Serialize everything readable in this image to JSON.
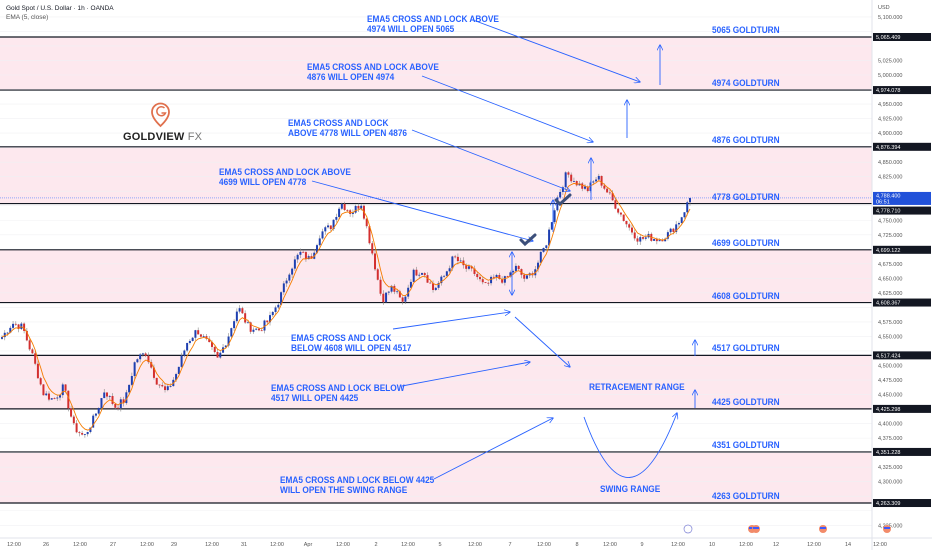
{
  "header": {
    "title": "Gold Spot / U.S. Dollar · 1h · OANDA",
    "indicator": "EMA (5, close)"
  },
  "logo": {
    "text": "GOLDVIEW",
    "suffix": "FX",
    "watermark": "GOLDVIEW FX"
  },
  "colors": {
    "up": "#1e3fb0",
    "down": "#d32f2f",
    "ema": "#f57c00",
    "annotation": "#2962ff",
    "band": "#fde8ee",
    "level_line": "#131722",
    "price_tag": "#2151d9"
  },
  "chart_data": {
    "type": "candlestick",
    "symbol": "XAUUSD",
    "interval": "1h",
    "currency": "USD",
    "ylim": [
      4210,
      5110
    ],
    "y_ticks": [
      5100,
      5075,
      5050,
      5025,
      5000,
      4975,
      4950,
      4925,
      4900,
      4875,
      4850,
      4825,
      4800,
      4775,
      4750,
      4725,
      4700,
      4675,
      4650,
      4625,
      4600,
      4575,
      4550,
      4525,
      4500,
      4475,
      4450,
      4425,
      4400,
      4375,
      4350,
      4325,
      4300,
      4275,
      4250,
      4225
    ],
    "x_ticks": [
      "12:00",
      "26",
      "12:00",
      "27",
      "12:00",
      "29",
      "12:00",
      "31",
      "12:00",
      "Apr",
      "12:00",
      "2",
      "12:00",
      "5",
      "12:00",
      "7",
      "12:00",
      "8",
      "12:00",
      "9",
      "12:00",
      "10",
      "12:00",
      "12",
      "12:00",
      "14",
      "12:00"
    ],
    "price_path": [
      4549,
      4573,
      4566,
      4515,
      4453,
      4441,
      4463,
      4394,
      4377,
      4411,
      4458,
      4429,
      4441,
      4510,
      4522,
      4475,
      4453,
      4487,
      4539,
      4561,
      4539,
      4510,
      4549,
      4601,
      4566,
      4561,
      4578,
      4613,
      4664,
      4694,
      4682,
      4728,
      4739,
      4780,
      4763,
      4780,
      4699,
      4613,
      4635,
      4607,
      4659,
      4664,
      4630,
      4652,
      4687,
      4669,
      4659,
      4635,
      4652,
      4647,
      4669,
      4647,
      4669,
      4711,
      4785,
      4831,
      4814,
      4802,
      4825,
      4797,
      4768,
      4739,
      4717,
      4721,
      4717,
      4728,
      4750,
      4788
    ],
    "last_price": "4,788.400",
    "countdown": "06:51",
    "ema_value": "4,778.710",
    "levels": [
      {
        "price": 5065.409,
        "tag": "5,065.409",
        "label": "5065 GOLDTURN"
      },
      {
        "price": 4974.078,
        "tag": "4,974.078",
        "label": "4974 GOLDTURN"
      },
      {
        "price": 4876.394,
        "tag": "4,876.394",
        "label": "4876 GOLDTURN"
      },
      {
        "price": 4778.71,
        "tag": "",
        "label": "4778 GOLDTURN"
      },
      {
        "price": 4699.122,
        "tag": "4,699.122",
        "label": "4699 GOLDTURN"
      },
      {
        "price": 4608.367,
        "tag": "4,608.367",
        "label": "4608 GOLDTURN"
      },
      {
        "price": 4517.424,
        "tag": "4,517.424",
        "label": "4517 GOLDTURN"
      },
      {
        "price": 4425.298,
        "tag": "4,425.298",
        "label": "4425 GOLDTURN"
      },
      {
        "price": 4351.228,
        "tag": "4,351.228",
        "label": "4351 GOLDTURN"
      },
      {
        "price": 4263.309,
        "tag": "4,263.309",
        "label": "4263 GOLDTURN"
      }
    ],
    "shaded_bands": [
      [
        4974.078,
        5065.409
      ],
      [
        4778.71,
        4876.394
      ],
      [
        4608.367,
        4699.122
      ],
      [
        4425.298,
        4517.424
      ],
      [
        4263.309,
        4351.228
      ]
    ]
  },
  "annotations": [
    "EMA5 CROSS AND LOCK ABOVE\n4974 WILL OPEN 5065",
    "EMA5 CROSS AND LOCK ABOVE\n4876 WILL OPEN 4974",
    "EMA5 CROSS AND LOCK\nABOVE 4778 WILL OPEN 4876",
    "EMA5 CROSS AND LOCK ABOVE\n4699 WILL OPEN 4778",
    "EMA5 CROSS AND LOCK\nBELOW 4608 WILL OPEN 4517",
    "EMA5 CROSS AND LOCK BELOW\n4517 WILL OPEN 4425",
    "EMA5 CROSS AND LOCK BELOW 4425\nWILL OPEN THE SWING RANGE",
    "RETRACEMENT RANGE",
    "SWING RANGE"
  ],
  "axis": {
    "currency_label": "USD"
  }
}
